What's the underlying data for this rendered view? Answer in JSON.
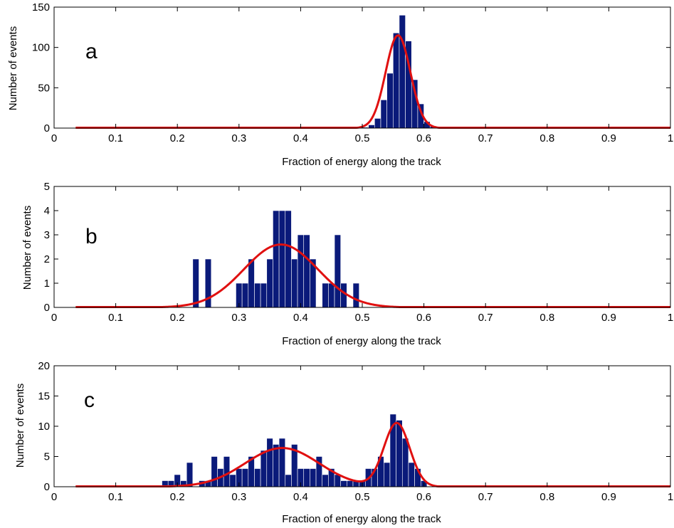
{
  "chart_data": [
    {
      "type": "bar",
      "panel_label": "a",
      "xlabel": "Fraction of energy along the track",
      "ylabel": "Number of events",
      "xlim": [
        0,
        1
      ],
      "ylim": [
        0,
        150
      ],
      "xticks": [
        "0",
        "0.1",
        "0.2",
        "0.3",
        "0.4",
        "0.5",
        "0.6",
        "0.7",
        "0.8",
        "0.9",
        "1"
      ],
      "yticks": [
        "0",
        "50",
        "100",
        "150"
      ],
      "bin_width": 0.01,
      "bars": [
        {
          "x": 0.505,
          "y": 1
        },
        {
          "x": 0.515,
          "y": 4
        },
        {
          "x": 0.525,
          "y": 12
        },
        {
          "x": 0.535,
          "y": 35
        },
        {
          "x": 0.545,
          "y": 68
        },
        {
          "x": 0.555,
          "y": 118
        },
        {
          "x": 0.565,
          "y": 140
        },
        {
          "x": 0.575,
          "y": 108
        },
        {
          "x": 0.585,
          "y": 60
        },
        {
          "x": 0.595,
          "y": 30
        },
        {
          "x": 0.605,
          "y": 8
        },
        {
          "x": 0.615,
          "y": 2
        }
      ],
      "fit": {
        "components": [
          {
            "amplitude": 115,
            "mean": 0.558,
            "sigma": 0.02
          }
        ]
      },
      "colors": {
        "bars": "#0a1a7a",
        "fit": "#e01010"
      },
      "grid": false
    },
    {
      "type": "bar",
      "panel_label": "b",
      "xlabel": "Fraction of energy along the track",
      "ylabel": "Number of events",
      "xlim": [
        0,
        1
      ],
      "ylim": [
        0,
        5
      ],
      "xticks": [
        "0",
        "0.1",
        "0.2",
        "0.3",
        "0.4",
        "0.5",
        "0.6",
        "0.7",
        "0.8",
        "0.9",
        "1"
      ],
      "yticks": [
        "0",
        "1",
        "2",
        "3",
        "4",
        "5"
      ],
      "bin_width": 0.01,
      "bars": [
        {
          "x": 0.23,
          "y": 2
        },
        {
          "x": 0.25,
          "y": 2
        },
        {
          "x": 0.3,
          "y": 1
        },
        {
          "x": 0.31,
          "y": 1
        },
        {
          "x": 0.32,
          "y": 2
        },
        {
          "x": 0.33,
          "y": 1
        },
        {
          "x": 0.34,
          "y": 1
        },
        {
          "x": 0.35,
          "y": 2
        },
        {
          "x": 0.36,
          "y": 4
        },
        {
          "x": 0.37,
          "y": 4
        },
        {
          "x": 0.38,
          "y": 4
        },
        {
          "x": 0.39,
          "y": 2
        },
        {
          "x": 0.4,
          "y": 3
        },
        {
          "x": 0.41,
          "y": 3
        },
        {
          "x": 0.42,
          "y": 2
        },
        {
          "x": 0.44,
          "y": 1
        },
        {
          "x": 0.45,
          "y": 1
        },
        {
          "x": 0.46,
          "y": 3
        },
        {
          "x": 0.47,
          "y": 1
        },
        {
          "x": 0.49,
          "y": 1
        }
      ],
      "fit": {
        "components": [
          {
            "amplitude": 2.6,
            "mean": 0.368,
            "sigma": 0.06
          }
        ]
      },
      "colors": {
        "bars": "#0a1a7a",
        "fit": "#e01010"
      },
      "grid": false
    },
    {
      "type": "bar",
      "panel_label": "c",
      "xlabel": "Fraction of energy along the track",
      "ylabel": "Number of events",
      "xlim": [
        0,
        1
      ],
      "ylim": [
        0,
        20
      ],
      "xticks": [
        "0",
        "0.1",
        "0.2",
        "0.3",
        "0.4",
        "0.5",
        "0.6",
        "0.7",
        "0.8",
        "0.9",
        "1"
      ],
      "yticks": [
        "0",
        "5",
        "10",
        "15",
        "20"
      ],
      "bin_width": 0.01,
      "bars": [
        {
          "x": 0.18,
          "y": 1
        },
        {
          "x": 0.19,
          "y": 1
        },
        {
          "x": 0.2,
          "y": 2
        },
        {
          "x": 0.21,
          "y": 1
        },
        {
          "x": 0.22,
          "y": 4
        },
        {
          "x": 0.24,
          "y": 1
        },
        {
          "x": 0.25,
          "y": 1
        },
        {
          "x": 0.26,
          "y": 5
        },
        {
          "x": 0.27,
          "y": 3
        },
        {
          "x": 0.28,
          "y": 5
        },
        {
          "x": 0.29,
          "y": 2
        },
        {
          "x": 0.3,
          "y": 3
        },
        {
          "x": 0.31,
          "y": 3
        },
        {
          "x": 0.32,
          "y": 5
        },
        {
          "x": 0.33,
          "y": 3
        },
        {
          "x": 0.34,
          "y": 6
        },
        {
          "x": 0.35,
          "y": 8
        },
        {
          "x": 0.36,
          "y": 7
        },
        {
          "x": 0.37,
          "y": 8
        },
        {
          "x": 0.38,
          "y": 2
        },
        {
          "x": 0.39,
          "y": 7
        },
        {
          "x": 0.4,
          "y": 3
        },
        {
          "x": 0.41,
          "y": 3
        },
        {
          "x": 0.42,
          "y": 3
        },
        {
          "x": 0.43,
          "y": 5
        },
        {
          "x": 0.44,
          "y": 2
        },
        {
          "x": 0.45,
          "y": 3
        },
        {
          "x": 0.46,
          "y": 2
        },
        {
          "x": 0.47,
          "y": 1
        },
        {
          "x": 0.48,
          "y": 1
        },
        {
          "x": 0.49,
          "y": 1
        },
        {
          "x": 0.5,
          "y": 1
        },
        {
          "x": 0.51,
          "y": 3
        },
        {
          "x": 0.52,
          "y": 3
        },
        {
          "x": 0.53,
          "y": 5
        },
        {
          "x": 0.54,
          "y": 4
        },
        {
          "x": 0.55,
          "y": 12
        },
        {
          "x": 0.56,
          "y": 11
        },
        {
          "x": 0.57,
          "y": 8
        },
        {
          "x": 0.58,
          "y": 4
        },
        {
          "x": 0.59,
          "y": 3
        },
        {
          "x": 0.6,
          "y": 1
        }
      ],
      "fit": {
        "components": [
          {
            "amplitude": 6.4,
            "mean": 0.37,
            "sigma": 0.06
          },
          {
            "amplitude": 10.5,
            "mean": 0.556,
            "sigma": 0.021
          }
        ]
      },
      "colors": {
        "bars": "#0a1a7a",
        "fit": "#e01010"
      },
      "grid": false
    }
  ]
}
